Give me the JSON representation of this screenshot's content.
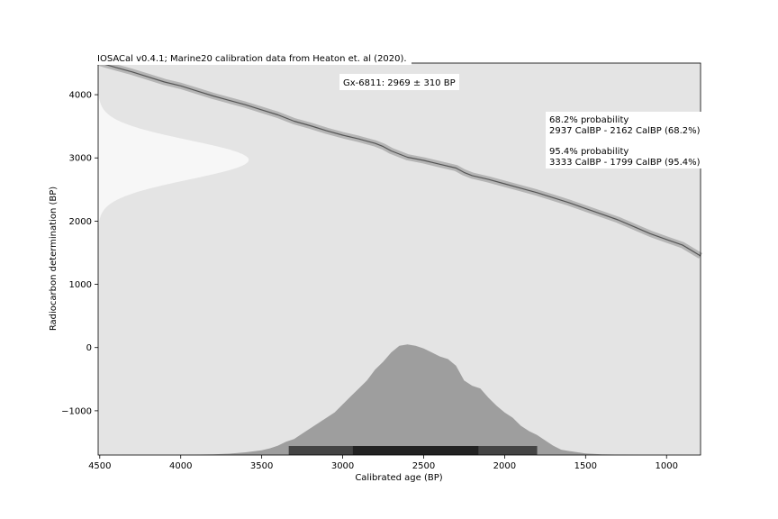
{
  "chart_data": {
    "type": "area",
    "title": "IOSACal v0.4.1;  Marine20 calibration data from Heaton et. al (2020).",
    "annotation": "Gx-6811: 2969 ± 310 BP",
    "probability_ranges": {
      "p68_heading": "68.2% probability",
      "p68_range": "2937 CalBP - 2162 CalBP (68.2%)",
      "p95_heading": "95.4% probability",
      "p95_range": "3333 CalBP - 1799 CalBP (95.4%)"
    },
    "xlabel": "Calibrated age (BP)",
    "ylabel": "Radiocarbon determination (BP)",
    "xlim": [
      4510,
      790
    ],
    "ylim": [
      -1700,
      4500
    ],
    "x_reversed": true,
    "x_ticks": [
      4500,
      4000,
      3500,
      3000,
      2500,
      2000,
      1500,
      1000
    ],
    "y_ticks": [
      -1000,
      0,
      1000,
      2000,
      3000,
      4000
    ],
    "tick_labels": {
      "x": [
        "4500",
        "4000",
        "3500",
        "3000",
        "2500",
        "2000",
        "1500",
        "1000"
      ],
      "y": [
        "−1000",
        "0",
        "1000",
        "2000",
        "3000",
        "4000"
      ]
    },
    "grid": false,
    "legend": "none",
    "radiocarbon_date": {
      "mean": 2969,
      "sigma": 310
    },
    "calibration_curve": {
      "name": "Marine20",
      "x": [
        4510,
        4400,
        4300,
        4200,
        4100,
        4000,
        3900,
        3800,
        3700,
        3600,
        3500,
        3400,
        3300,
        3200,
        3100,
        3000,
        2900,
        2800,
        2750,
        2700,
        2600,
        2500,
        2400,
        2300,
        2250,
        2200,
        2100,
        2000,
        1900,
        1800,
        1700,
        1600,
        1500,
        1400,
        1300,
        1200,
        1100,
        1000,
        900,
        790
      ],
      "y": [
        4510,
        4430,
        4360,
        4280,
        4200,
        4140,
        4060,
        3980,
        3910,
        3840,
        3760,
        3680,
        3580,
        3510,
        3430,
        3360,
        3300,
        3230,
        3180,
        3110,
        3010,
        2960,
        2900,
        2840,
        2770,
        2720,
        2660,
        2590,
        2520,
        2450,
        2370,
        2290,
        2200,
        2110,
        2020,
        1910,
        1800,
        1710,
        1620,
        1450
      ]
    },
    "calibrated_distribution": {
      "x": [
        4510,
        4000,
        3800,
        3700,
        3600,
        3500,
        3450,
        3400,
        3350,
        3300,
        3250,
        3200,
        3150,
        3100,
        3050,
        3000,
        2950,
        2900,
        2850,
        2800,
        2750,
        2700,
        2650,
        2600,
        2550,
        2500,
        2450,
        2400,
        2350,
        2300,
        2250,
        2200,
        2150,
        2100,
        2050,
        2000,
        1950,
        1900,
        1850,
        1800,
        1750,
        1700,
        1650,
        1600,
        1500,
        1400,
        1200,
        790
      ],
      "density": [
        0,
        0.001,
        0.005,
        0.01,
        0.02,
        0.035,
        0.05,
        0.07,
        0.1,
        0.12,
        0.16,
        0.2,
        0.24,
        0.28,
        0.32,
        0.38,
        0.44,
        0.5,
        0.56,
        0.64,
        0.7,
        0.77,
        0.82,
        0.83,
        0.82,
        0.8,
        0.77,
        0.74,
        0.72,
        0.67,
        0.56,
        0.52,
        0.5,
        0.43,
        0.37,
        0.32,
        0.28,
        0.22,
        0.18,
        0.15,
        0.11,
        0.07,
        0.04,
        0.03,
        0.012,
        0.005,
        0.001,
        0
      ]
    },
    "hpd_intervals": {
      "p95": [
        3333,
        1799
      ],
      "p68": [
        2937,
        2162
      ]
    },
    "colors": {
      "plot_background": "#e4e4e4",
      "calibrated_fill": "#9e9e9e",
      "curve_band": "#b5b5b5",
      "curve_line": "#555555",
      "radiocarbon_fill": "#f7f7f7",
      "interval_95": "#444444",
      "interval_68": "#222222"
    }
  }
}
